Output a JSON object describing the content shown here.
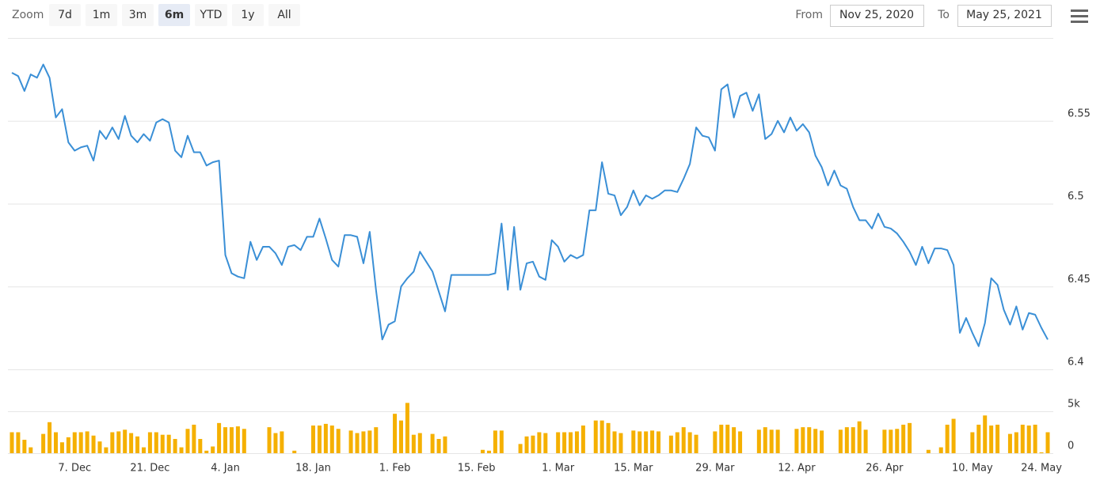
{
  "toolbar": {
    "zoom_label": "Zoom",
    "buttons": [
      "7d",
      "1m",
      "3m",
      "6m",
      "YTD",
      "1y",
      "All"
    ],
    "selected": 3,
    "from_label": "From",
    "from_value": "Nov 25, 2020",
    "to_label": "To",
    "to_value": "May 25, 2021"
  },
  "chart_data": [
    {
      "type": "line",
      "color": "#3a8fd6",
      "ylim": [
        6.4,
        6.6
      ],
      "yticks": [
        6.4,
        6.45,
        6.5,
        6.55
      ],
      "grid": true,
      "values": [
        6.579,
        6.577,
        6.568,
        6.578,
        6.576,
        6.584,
        6.576,
        6.552,
        6.557,
        6.537,
        6.532,
        6.534,
        6.535,
        6.526,
        6.544,
        6.539,
        6.546,
        6.539,
        6.553,
        6.541,
        6.537,
        6.542,
        6.538,
        6.549,
        6.551,
        6.549,
        6.532,
        6.528,
        6.541,
        6.531,
        6.531,
        6.523,
        6.525,
        6.526,
        6.469,
        6.458,
        6.456,
        6.455,
        6.477,
        6.466,
        6.474,
        6.474,
        6.47,
        6.463,
        6.474,
        6.475,
        6.472,
        6.48,
        6.48,
        6.491,
        6.479,
        6.466,
        6.462,
        6.481,
        6.481,
        6.48,
        6.464,
        6.483,
        6.448,
        6.418,
        6.427,
        6.429,
        6.45,
        6.455,
        6.459,
        6.471,
        6.465,
        6.459,
        6.447,
        6.435,
        6.457,
        6.457,
        6.457,
        6.457,
        6.457,
        6.457,
        6.457,
        6.458,
        6.488,
        6.448,
        6.486,
        6.448,
        6.464,
        6.465,
        6.456,
        6.454,
        6.478,
        6.474,
        6.465,
        6.469,
        6.467,
        6.469,
        6.496,
        6.496,
        6.525,
        6.506,
        6.505,
        6.493,
        6.498,
        6.508,
        6.499,
        6.505,
        6.503,
        6.505,
        6.508,
        6.508,
        6.507,
        6.515,
        6.524,
        6.546,
        6.541,
        6.54,
        6.532,
        6.569,
        6.572,
        6.552,
        6.565,
        6.567,
        6.556,
        6.566,
        6.539,
        6.542,
        6.55,
        6.543,
        6.552,
        6.544,
        6.548,
        6.543,
        6.529,
        6.522,
        6.511,
        6.52,
        6.511,
        6.509,
        6.498,
        6.49,
        6.49,
        6.485,
        6.494,
        6.486,
        6.485,
        6.482,
        6.477,
        6.471,
        6.463,
        6.474,
        6.464,
        6.473,
        6.473,
        6.472,
        6.463,
        6.422,
        6.431,
        6.422,
        6.414,
        6.428,
        6.455,
        6.451,
        6.436,
        6.427,
        6.438,
        6.424,
        6.434,
        6.433,
        6.425,
        6.418
      ]
    },
    {
      "type": "bar",
      "color": "#f5b000",
      "ylim": [
        0,
        10000
      ],
      "yticks": [
        0,
        {
          "value": 5000,
          "label": "5k"
        }
      ],
      "grid": true,
      "categories": [
        null,
        null,
        null,
        null,
        null,
        null,
        null,
        null,
        null,
        null,
        "7. Dec",
        null,
        null,
        null,
        null,
        null,
        null,
        null,
        null,
        null,
        null,
        null,
        "21. Dec",
        null,
        null,
        null,
        null,
        null,
        null,
        null,
        null,
        null,
        null,
        null,
        "4. Jan",
        null,
        null,
        null,
        null,
        null,
        null,
        null,
        null,
        null,
        null,
        null,
        null,
        null,
        "18. Jan",
        null,
        null,
        null,
        null,
        null,
        null,
        null,
        null,
        null,
        null,
        null,
        null,
        "1. Feb",
        null,
        null,
        null,
        null,
        null,
        null,
        null,
        null,
        null,
        null,
        null,
        null,
        "15. Feb",
        null,
        null,
        null,
        null,
        null,
        null,
        null,
        null,
        null,
        null,
        null,
        null,
        "1. Mar",
        null,
        null,
        null,
        null,
        null,
        null,
        null,
        null,
        null,
        null,
        null,
        "15. Mar",
        null,
        null,
        null,
        null,
        null,
        null,
        null,
        null,
        null,
        null,
        null,
        null,
        "29. Mar",
        null,
        null,
        null,
        null,
        null,
        null,
        null,
        null,
        null,
        null,
        null,
        null,
        "12. Apr",
        null,
        null,
        null,
        null,
        null,
        null,
        null,
        null,
        null,
        null,
        null,
        null,
        null,
        "26. Apr",
        null,
        null,
        null,
        null,
        null,
        null,
        null,
        null,
        null,
        null,
        null,
        null,
        null,
        "10. May",
        null,
        null,
        null,
        null,
        null,
        null,
        null,
        null,
        null,
        null,
        "24. May",
        null
      ],
      "values": [
        2500,
        2500,
        1600,
        700,
        null,
        2300,
        3700,
        2500,
        1300,
        1900,
        2500,
        2500,
        2600,
        2100,
        1400,
        700,
        2500,
        2600,
        2800,
        2400,
        2000,
        700,
        2500,
        2500,
        2200,
        2200,
        1700,
        700,
        2900,
        3400,
        1700,
        300,
        800,
        3600,
        3100,
        3100,
        3200,
        2900,
        null,
        null,
        null,
        3100,
        2400,
        2600,
        null,
        300,
        null,
        null,
        3300,
        3300,
        3500,
        3300,
        2900,
        null,
        2700,
        2400,
        2600,
        2700,
        3100,
        null,
        null,
        4700,
        3900,
        6000,
        2200,
        2400,
        null,
        2300,
        1700,
        2000,
        null,
        null,
        null,
        null,
        null,
        400,
        300,
        2700,
        2700,
        null,
        null,
        1100,
        2000,
        2100,
        2500,
        2400,
        null,
        2500,
        2500,
        2500,
        2600,
        3300,
        null,
        3900,
        3900,
        3600,
        2600,
        2400,
        null,
        2700,
        2600,
        2600,
        2700,
        2600,
        null,
        2100,
        2500,
        3100,
        2500,
        2200,
        null,
        null,
        2600,
        3400,
        3400,
        3100,
        2600,
        null,
        null,
        2800,
        3100,
        2800,
        2800,
        null,
        null,
        2900,
        3100,
        3100,
        2900,
        2700,
        null,
        null,
        2800,
        3100,
        3100,
        3800,
        2800,
        null,
        null,
        2800,
        2800,
        2900,
        3400,
        3600,
        null,
        null,
        400,
        null,
        700,
        3400,
        4100,
        null,
        null,
        2500,
        3400,
        4500,
        3300,
        3400,
        null,
        2300,
        2500,
        3400,
        3300,
        3400,
        100,
        2500
      ]
    }
  ]
}
